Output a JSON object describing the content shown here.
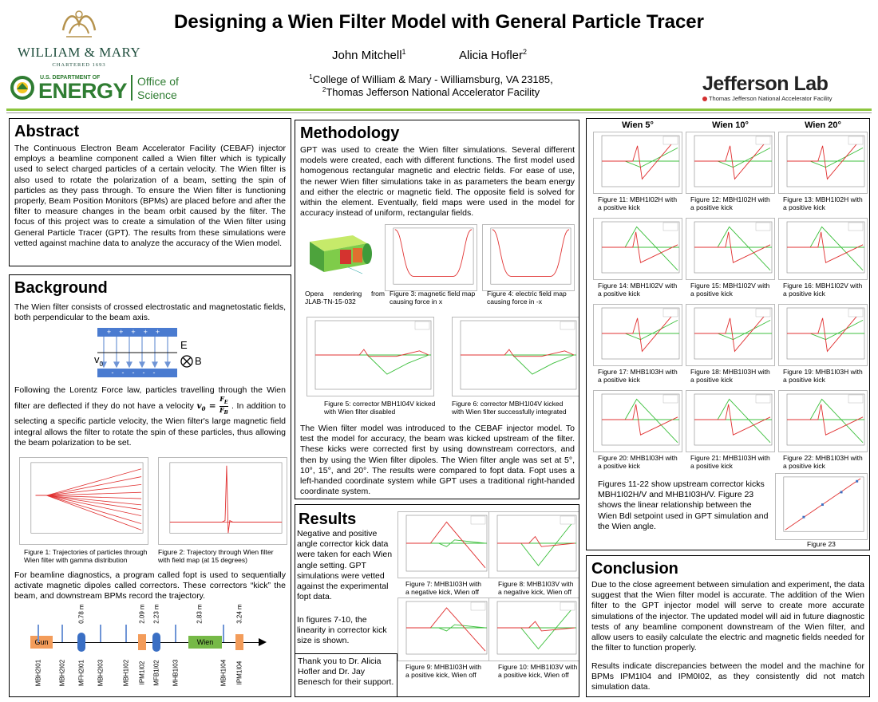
{
  "header": {
    "title": "Designing a Wien Filter Model with General Particle Tracer",
    "author1": "John Mitchell",
    "author1_sup": "1",
    "author2": "Alicia Hofler",
    "author2_sup": "2",
    "affil1_sup": "1",
    "affil1": "College of William & Mary - Williamsburg, VA 23185,",
    "affil2_sup": "2",
    "affil2": "Thomas Jefferson National Accelerator Facility"
  },
  "logos": {
    "wm_name": "WILLIAM & MARY",
    "wm_sub": "CHARTERED 1693",
    "doe_top": "U.S. DEPARTMENT OF",
    "doe_big": "ENERGY",
    "doe_office1": "Office of",
    "doe_office2": "Science",
    "jlab_name": "Jefferson Lab",
    "jlab_sub": "Thomas Jefferson National Accelerator Facility"
  },
  "abstract": {
    "title": "Abstract",
    "text": "The Continuous Electron Beam Accelerator Facility (CEBAF) injector employs a beamline component called a Wien filter which is typically used to select charged particles of a certain velocity. The Wien filter is also used to rotate the polarization of a beam, setting the spin of particles as they pass through. To ensure the Wien filter is functioning properly, Beam Position Monitors (BPMs) are placed before and after the filter to measure changes in the beam orbit caused by the filter. The focus of this project was to create a simulation of the Wien filter using General Particle Tracer (GPT). The results from these simulations were vetted against machine data to analyze the accuracy of the Wien model."
  },
  "background": {
    "title": "Background",
    "text1": "The Wien filter consists of crossed electrostatic and magnetostatic fields, both perpendicular to the beam axis.",
    "diagram": {
      "e_label": "E",
      "b_label": "B",
      "v_label": "v",
      "v_sub": "0",
      "plus": "+",
      "minus": "-"
    },
    "text2a": "Following the Lorentz Force law, particles travelling through the Wien filter are deflected if they do not have a velocity",
    "formula_v": "v",
    "formula_sub": "0",
    "formula_eq": " = ",
    "formula_num": "F",
    "formula_num_sub": "E",
    "formula_den": "F",
    "formula_den_sub": "B",
    "text2b": ". In addition to selecting a specific particle velocity, the Wien filter's large magnetic field integral allows the filter to rotate the spin of these particles, thus allowing the beam polarization to be set.",
    "fig1": "Figure 1: Trajectories of particles through Wien filter with gamma distribution",
    "fig2": "Figure 2: Trajectory through Wien filter with field map (at 15 degrees)",
    "text3": "For beamline diagnostics, a program called fopt is used to sequentially activate magnetic dipoles called correctors. These correctors “kick” the beam, and downstream BPMs record the trajectory.",
    "beamline": {
      "gun": "Gun",
      "wien": "Wien",
      "distances": [
        "0.78 m",
        "2.09 m",
        "2.23 m",
        "2.83 m",
        "3.24 m"
      ],
      "elements": [
        "MBH2I01",
        "MBH2I02",
        "MFH2I01",
        "MBH2I03",
        "MBH1I02",
        "IPM1I02",
        "MFB1I02",
        "MHB1I03",
        "MBH1I04",
        "IPM1I04"
      ]
    }
  },
  "methodology": {
    "title": "Methodology",
    "text1": "GPT was used to create the Wien filter simulations. Several different models were created, each with different functions. The first model used homogenous rectangular magnetic and electric fields. For ease of use, the newer Wien filter simulations take in as parameters the beam energy and either the electric or magnetic field. The opposite field is solved for within the element. Eventually, field maps were used in the model for accuracy instead of uniform, rectangular fields.",
    "opera_cap": "Opera rendering from JLAB-TN-15-032",
    "fig3": "Figure 3: magnetic field map causing force in x",
    "fig4": "Figure 4: electric field map causing force in -x",
    "fig5": "Figure 5: corrector MBH1I04V kicked with Wien filter disabled",
    "fig6": "Figure 6: corrector MBH1I04V kicked with Wien filter successfully integrated",
    "text2": "The Wien filter model was introduced to the CEBAF injector model. To test the model for accuracy, the beam was kicked upstream of the filter. These kicks were corrected first by using downstream correctors, and then by using the Wien filter dipoles. The Wien filter angle was set at 5°, 10°, 15°, and 20°. The results were compared to fopt data. Fopt uses a left-handed coordinate system while GPT uses a traditional right-handed coordinate system."
  },
  "results": {
    "title": "Results",
    "text1": "Negative and positive angle corrector kick data were taken for each Wien angle setting. GPT simulations were vetted against the experimental fopt data.",
    "text2": "In figures 7-10, the linearity in corrector kick size is shown.",
    "thanks": "Thank you to Dr. Alicia Hofler and Dr. Jay Benesch for their support.",
    "fig7": "Figure 7: MHB1I03H with a negative kick, Wien off",
    "fig8": "Figure 8: MHB1I03V with a negative kick, Wien off",
    "fig9": "Figure 9: MHB1I03H with a positive kick, Wien off",
    "fig10": "Figure 10: MHB1I03V with a positive kick, Wien off"
  },
  "grid": {
    "col_headers": [
      "Wien 5°",
      "Wien 10°",
      "Wien 20°"
    ],
    "captions": [
      "Figure 11: MBH1I02H with a positive kick",
      "Figure 12: MBH1I02H with a positive kick",
      "Figure 13: MBH1I02H with a positive kick",
      "Figure 14: MBH1I02V with a positive kick",
      "Figure 15: MBH1I02V with a positive kick",
      "Figure 16: MBH1I02V with a positive kick",
      "Figure 17: MHB1I03H with a positive kick",
      "Figure 18: MHB1I03H with a positive kick",
      "Figure 19: MHB1I03H with a positive kick",
      "Figure 20: MHB1I03H with a positive kick",
      "Figure 21: MHB1I03H with a positive kick",
      "Figure 22: MHB1I03H with a positive kick"
    ],
    "summary": "Figures 11-22 show upstream corrector kicks MBH1I02H/V and MHB1I03H/V. Figure 23 shows the linear relationship between the Wien Bdl setpoint used in GPT simulation and the Wien angle.",
    "fig23": "Figure 23"
  },
  "conclusion": {
    "title": "Conclusion",
    "text1": "Due to the close agreement between simulation and experiment, the data suggest that the Wien filter model is accurate. The addition of the Wien filter to the GPT injector model will serve to create more accurate simulations of the injector. The updated model will aid in future diagnostic tests of any beamline component downstream of the Wien filter, and allow users to easily calculate the electric and magnetic fields needed for the filter to function properly.",
    "text2": "Results indicate discrepancies between the model and the machine for BPMs IPM1I04 and IPM0I02, as they consistently did not match simulation data."
  },
  "colors": {
    "gun": "#f39c5a",
    "wien": "#76b947",
    "bpm": "#3a6fc4",
    "sim_red": "#e03030",
    "sim_green": "#3cbf3c",
    "jlab_green": "#8dc63f",
    "doe_green": "#2f7d32"
  }
}
